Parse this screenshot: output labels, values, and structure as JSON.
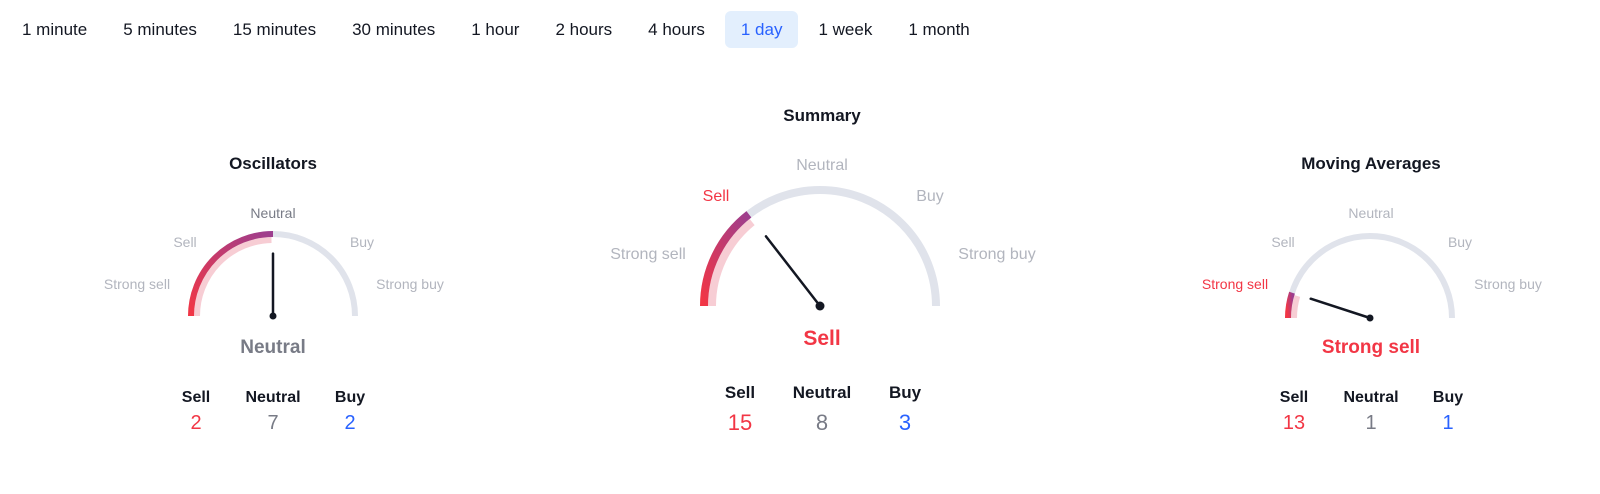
{
  "timeframes": {
    "items": [
      "1 minute",
      "5 minutes",
      "15 minutes",
      "30 minutes",
      "1 hour",
      "2 hours",
      "4 hours",
      "1 day",
      "1 week",
      "1 month"
    ],
    "active": "1 day"
  },
  "colors": {
    "sell": "#f23645",
    "neutral": "#787b86",
    "buy": "#2962ff",
    "track": "#e0e3eb",
    "active_tab_bg": "#e3effd",
    "needle": "#131722"
  },
  "gauges": {
    "oscillators": {
      "title": "Oscillators",
      "scale": [
        "Strong sell",
        "Sell",
        "Neutral",
        "Buy",
        "Strong buy"
      ],
      "status": "Neutral",
      "needle_position": 0.5,
      "counts": {
        "sell_label": "Sell",
        "neutral_label": "Neutral",
        "buy_label": "Buy",
        "sell": "2",
        "neutral": "7",
        "buy": "2"
      }
    },
    "summary": {
      "title": "Summary",
      "scale": [
        "Strong sell",
        "Sell",
        "Neutral",
        "Buy",
        "Strong buy"
      ],
      "status": "Sell",
      "needle_position": 0.29,
      "counts": {
        "sell_label": "Sell",
        "neutral_label": "Neutral",
        "buy_label": "Buy",
        "sell": "15",
        "neutral": "8",
        "buy": "3"
      }
    },
    "moving_averages": {
      "title": "Moving Averages",
      "scale": [
        "Strong sell",
        "Sell",
        "Neutral",
        "Buy",
        "Strong buy"
      ],
      "status": "Strong sell",
      "needle_position": 0.1,
      "counts": {
        "sell_label": "Sell",
        "neutral_label": "Neutral",
        "buy_label": "Buy",
        "sell": "13",
        "neutral": "1",
        "buy": "1"
      }
    }
  }
}
